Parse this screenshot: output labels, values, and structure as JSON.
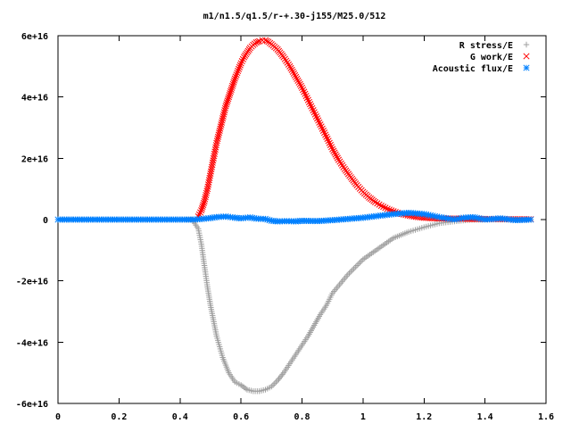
{
  "chart_data": {
    "type": "scatter",
    "title": "m1/n1.5/q1.5/r-+.30-j155/M25.0/512",
    "xlabel": "",
    "ylabel": "",
    "xlim": [
      0,
      1.6
    ],
    "ylim": [
      -6e+16,
      6e+16
    ],
    "grid": false,
    "legend_placement": "top-right",
    "x_ticks": [
      {
        "value": 0,
        "label": "0"
      },
      {
        "value": 0.2,
        "label": "0.2"
      },
      {
        "value": 0.4,
        "label": "0.4"
      },
      {
        "value": 0.6,
        "label": "0.6"
      },
      {
        "value": 0.8,
        "label": "0.8"
      },
      {
        "value": 1.0,
        "label": "1"
      },
      {
        "value": 1.2,
        "label": "1.2"
      },
      {
        "value": 1.4,
        "label": "1.4"
      },
      {
        "value": 1.6,
        "label": "1.6"
      }
    ],
    "y_ticks": [
      {
        "value": 6e+16,
        "label": "6e+16"
      },
      {
        "value": 4e+16,
        "label": "4e+16"
      },
      {
        "value": 2e+16,
        "label": "2e+16"
      },
      {
        "value": 0,
        "label": "0"
      },
      {
        "value": -2e+16,
        "label": "-2e+16"
      },
      {
        "value": -4e+16,
        "label": "-4e+16"
      },
      {
        "value": -6e+16,
        "label": "-6e+16"
      }
    ],
    "series": [
      {
        "name": "R stress/E",
        "color": "#a0a0a0",
        "marker": "plus",
        "x": [
          0,
          0.1,
          0.2,
          0.3,
          0.4,
          0.44,
          0.46,
          0.47,
          0.48,
          0.49,
          0.5,
          0.52,
          0.54,
          0.56,
          0.58,
          0.6,
          0.62,
          0.64,
          0.66,
          0.68,
          0.7,
          0.72,
          0.74,
          0.76,
          0.78,
          0.8,
          0.82,
          0.84,
          0.86,
          0.88,
          0.9,
          0.95,
          1.0,
          1.05,
          1.1,
          1.15,
          1.2,
          1.25,
          1.3,
          1.35,
          1.4,
          1.45,
          1.5,
          1.55
        ],
        "y": [
          0,
          0,
          0,
          0,
          0,
          0,
          -3000000000000000.0,
          -8000000000000000.0,
          -1.5e+16,
          -2.2e+16,
          -2.8e+16,
          -3.8e+16,
          -4.5e+16,
          -5e+16,
          -5.3e+16,
          -5.4e+16,
          -5.55e+16,
          -5.6e+16,
          -5.6e+16,
          -5.55e+16,
          -5.45e+16,
          -5.25e+16,
          -5e+16,
          -4.7e+16,
          -4.4e+16,
          -4.1e+16,
          -3.8e+16,
          -3.45e+16,
          -3.1e+16,
          -2.8e+16,
          -2.4e+16,
          -1.8e+16,
          -1.3e+16,
          -9500000000000000.0,
          -6000000000000000.0,
          -4000000000000000.0,
          -2500000000000000.0,
          -1200000000000000.0,
          -600000000000000.0,
          -100000000000000.0,
          0,
          0,
          0,
          0
        ]
      },
      {
        "name": "G work/E",
        "color": "#ff0000",
        "marker": "cross",
        "x": [
          0.46,
          0.47,
          0.48,
          0.49,
          0.5,
          0.51,
          0.52,
          0.53,
          0.54,
          0.55,
          0.56,
          0.57,
          0.58,
          0.59,
          0.6,
          0.61,
          0.62,
          0.63,
          0.64,
          0.65,
          0.66,
          0.67,
          0.68,
          0.69,
          0.7,
          0.72,
          0.74,
          0.76,
          0.78,
          0.8,
          0.82,
          0.84,
          0.86,
          0.88,
          0.9,
          0.92,
          0.94,
          0.96,
          0.98,
          1.0,
          1.02,
          1.04,
          1.06,
          1.08,
          1.1,
          1.12,
          1.14,
          1.16,
          1.18,
          1.2,
          1.22,
          1.24,
          1.26,
          1.28,
          1.3,
          1.32,
          1.34,
          1.36,
          1.38,
          1.4,
          1.45,
          1.5,
          1.55
        ],
        "y": [
          1000000000000000.0,
          3000000000000000.0,
          6000000000000000.0,
          1e+16,
          1.5e+16,
          2e+16,
          2.5e+16,
          2.9e+16,
          3.3e+16,
          3.7e+16,
          4e+16,
          4.3e+16,
          4.6e+16,
          4.85e+16,
          5.1e+16,
          5.3e+16,
          5.45e+16,
          5.6e+16,
          5.7e+16,
          5.78e+16,
          5.82e+16,
          5.85e+16,
          5.85e+16,
          5.8e+16,
          5.72e+16,
          5.55e+16,
          5.3e+16,
          5e+16,
          4.65e+16,
          4.3e+16,
          3.9e+16,
          3.5e+16,
          3.1e+16,
          2.7e+16,
          2.3e+16,
          1.95e+16,
          1.65e+16,
          1.38e+16,
          1.12e+16,
          9000000000000000.0,
          7200000000000000.0,
          5700000000000000.0,
          4500000000000000.0,
          3500000000000000.0,
          2700000000000000.0,
          2000000000000000.0,
          1500000000000000.0,
          1100000000000000.0,
          800000000000000.0,
          600000000000000.0,
          500000000000000.0,
          400000000000000.0,
          350000000000000.0,
          300000000000000.0,
          300000000000000.0,
          300000000000000.0,
          250000000000000.0,
          200000000000000.0,
          200000000000000.0,
          200000000000000.0,
          150000000000000.0,
          100000000000000.0,
          100000000000000.0
        ]
      },
      {
        "name": "Acoustic flux/E",
        "color": "#0080ff",
        "marker": "star",
        "x": [
          0,
          0.05,
          0.1,
          0.15,
          0.2,
          0.25,
          0.3,
          0.35,
          0.4,
          0.45,
          0.5,
          0.52,
          0.55,
          0.58,
          0.6,
          0.63,
          0.65,
          0.68,
          0.7,
          0.72,
          0.75,
          0.78,
          0.8,
          0.85,
          0.9,
          0.95,
          1.0,
          1.05,
          1.1,
          1.15,
          1.2,
          1.25,
          1.3,
          1.33,
          1.36,
          1.4,
          1.45,
          1.5,
          1.55
        ],
        "y": [
          0,
          0,
          0,
          0,
          0,
          0,
          0,
          0,
          0,
          0,
          500000000000000.0,
          800000000000000.0,
          1000000000000000.0,
          600000000000000.0,
          400000000000000.0,
          700000000000000.0,
          300000000000000.0,
          200000000000000.0,
          -400000000000000.0,
          -600000000000000.0,
          -500000000000000.0,
          -600000000000000.0,
          -400000000000000.0,
          -500000000000000.0,
          -200000000000000.0,
          200000000000000.0,
          600000000000000.0,
          1200000000000000.0,
          1800000000000000.0,
          2200000000000000.0,
          1800000000000000.0,
          800000000000000.0,
          0.0,
          600000000000000.0,
          800000000000000.0,
          0.0,
          400000000000000.0,
          -200000000000000.0,
          0.0
        ]
      }
    ]
  }
}
